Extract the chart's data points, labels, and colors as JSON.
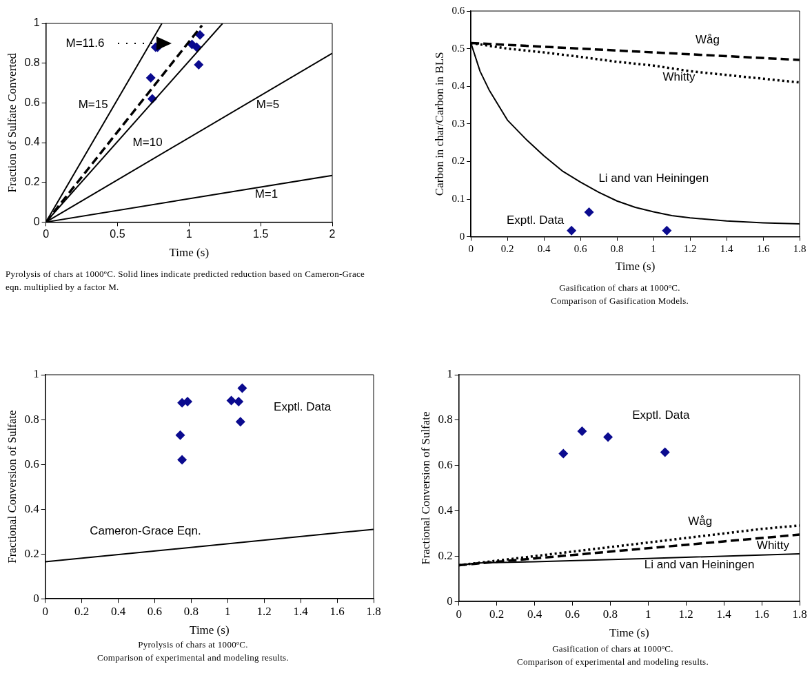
{
  "chart_data": [
    {
      "type": "line",
      "xlabel": "Time (s)",
      "ylabel": "Fraction of Sulfate Converted",
      "xlim": [
        0,
        2
      ],
      "xticks": [
        0,
        0.5,
        1,
        1.5,
        2
      ],
      "ylim": [
        0,
        1
      ],
      "yticks": [
        0,
        0.2,
        0.4,
        0.6,
        0.8,
        1
      ],
      "grid": false,
      "legend": "top left",
      "marker": "none",
      "series": [
        {
          "name": "M=15",
          "type": "line",
          "line_style": "solid",
          "color": "#000000",
          "x": [
            0,
            0.81
          ],
          "values": [
            0,
            1
          ]
        },
        {
          "name": "M=10",
          "type": "line",
          "line_style": "solid",
          "color": "#000000",
          "x": [
            0,
            1.234
          ],
          "values": [
            0,
            1
          ]
        },
        {
          "name": "M=5",
          "type": "line",
          "line_style": "solid",
          "color": "#000000",
          "x": [
            0,
            2
          ],
          "values": [
            0,
            0.85
          ]
        },
        {
          "name": "M=1",
          "type": "line",
          "line_style": "solid",
          "color": "#000000",
          "x": [
            0,
            2
          ],
          "values": [
            0,
            0.235
          ]
        },
        {
          "name": "M=11.6",
          "type": "line",
          "line_style": "dashed",
          "color": "#000000",
          "x": [
            0,
            1.09
          ],
          "values": [
            0,
            0.99
          ]
        },
        {
          "type": "scatter",
          "marker": "diamond",
          "color": "#0b0b8f",
          "x": [
            0.766,
            0.78,
            0.732,
            0.743,
            1.02,
            1.053,
            1.076,
            1.067
          ],
          "values": [
            0.88,
            0.88,
            0.726,
            0.62,
            0.894,
            0.88,
            0.942,
            0.792
          ]
        }
      ],
      "annotations": [
        "Pyrolysis of chars at 1000ºC. Solid lines indicate predicted reduction based on Cameron-Grace eqn. multiplied by a factor M."
      ]
    },
    {
      "type": "line",
      "xlabel": "Time (s)",
      "ylabel": "Carbon in char/Carbon in BLS",
      "xlim": [
        0,
        1.8
      ],
      "xticks": [
        0,
        0.2,
        0.4,
        0.6,
        0.8,
        1,
        1.2,
        1.4,
        1.6,
        1.8
      ],
      "ylim": [
        0,
        0.6
      ],
      "yticks": [
        0,
        0.1,
        0.2,
        0.3,
        0.4,
        0.5,
        0.6
      ],
      "grid": false,
      "marker": "none",
      "series": [
        {
          "name": "Wåg",
          "type": "line",
          "line_style": "dashed",
          "color": "#000000",
          "x": [
            0,
            0.6,
            1,
            1.4,
            1.8
          ],
          "values": [
            0.515,
            0.5,
            0.49,
            0.48,
            0.47
          ]
        },
        {
          "name": "Whitty",
          "type": "line",
          "line_style": "dotted",
          "color": "#000000",
          "x": [
            0,
            0.2,
            0.4,
            0.6,
            0.8,
            1,
            1.2,
            1.4,
            1.6,
            1.8
          ],
          "values": [
            0.515,
            0.5,
            0.49,
            0.478,
            0.465,
            0.455,
            0.44,
            0.43,
            0.42,
            0.41
          ]
        },
        {
          "name": "Li and van Heiningen",
          "type": "line",
          "line_style": "solid",
          "color": "#000000",
          "x": [
            0,
            0.05,
            0.1,
            0.2,
            0.3,
            0.4,
            0.5,
            0.6,
            0.7,
            0.8,
            0.9,
            1,
            1.1,
            1.2,
            1.4,
            1.6,
            1.8
          ],
          "values": [
            0.515,
            0.44,
            0.39,
            0.31,
            0.26,
            0.215,
            0.175,
            0.145,
            0.118,
            0.095,
            0.078,
            0.066,
            0.056,
            0.05,
            0.042,
            0.037,
            0.034
          ]
        },
        {
          "name": "Exptl. Data",
          "type": "scatter",
          "marker": "diamond",
          "color": "#0b0b8f",
          "x": [
            0.551,
            0.647,
            1.073
          ],
          "values": [
            0.016,
            0.065,
            0.016
          ]
        }
      ],
      "annotations": [
        "Gasification of chars at 1000ºC.",
        "Comparison of Gasification Models."
      ]
    },
    {
      "type": "line",
      "xlabel": "Time (s)",
      "ylabel": "Fractional Conversion of Sulfate",
      "xlim": [
        0,
        1.8
      ],
      "xticks": [
        0,
        0.2,
        0.4,
        0.6,
        0.8,
        1,
        1.2,
        1.4,
        1.6,
        1.8
      ],
      "ylim": [
        0,
        1
      ],
      "yticks": [
        0,
        0.2,
        0.4,
        0.6,
        0.8,
        1
      ],
      "grid": false,
      "marker": "none",
      "series": [
        {
          "name": "Cameron-Grace Eqn.",
          "type": "line",
          "line_style": "solid",
          "color": "#000000",
          "x": [
            0,
            1.8
          ],
          "values": [
            0.165,
            0.31
          ]
        },
        {
          "name": "Exptl. Data",
          "type": "scatter",
          "marker": "diamond",
          "color": "#0b0b8f",
          "x": [
            0.75,
            0.78,
            0.74,
            0.75,
            1.02,
            1.06,
            1.08,
            1.07
          ],
          "values": [
            0.875,
            0.88,
            0.73,
            0.62,
            0.885,
            0.88,
            0.94,
            0.79
          ]
        }
      ],
      "annotations": [
        "Pyrolysis of chars at 1000ºC.",
        "Comparison of experimental and modeling results."
      ]
    },
    {
      "type": "line",
      "xlabel": "Time (s)",
      "ylabel": "Fractional Conversion of Sulfate",
      "xlim": [
        0,
        1.8
      ],
      "xticks": [
        0,
        0.2,
        0.4,
        0.6,
        0.8,
        1,
        1.2,
        1.4,
        1.6,
        1.8
      ],
      "ylim": [
        0,
        1
      ],
      "yticks": [
        0,
        0.2,
        0.4,
        0.6,
        0.8,
        1
      ],
      "grid": false,
      "marker": "none",
      "series": [
        {
          "name": "Wåg",
          "type": "line",
          "line_style": "dotted",
          "color": "#000000",
          "x": [
            0,
            0.2,
            0.4,
            0.6,
            0.8,
            1,
            1.2,
            1.4,
            1.6,
            1.8
          ],
          "values": [
            0.16,
            0.18,
            0.2,
            0.22,
            0.24,
            0.26,
            0.28,
            0.3,
            0.32,
            0.335
          ]
        },
        {
          "name": "Whitty",
          "type": "line",
          "line_style": "dashed",
          "color": "#000000",
          "x": [
            0,
            0.2,
            0.4,
            0.6,
            0.8,
            1,
            1.2,
            1.4,
            1.6,
            1.8
          ],
          "values": [
            0.16,
            0.175,
            0.19,
            0.205,
            0.22,
            0.235,
            0.25,
            0.265,
            0.28,
            0.295
          ]
        },
        {
          "name": "Li and van Heiningen",
          "type": "line",
          "line_style": "solid",
          "color": "#000000",
          "x": [
            0,
            0.1,
            0.4,
            1,
            1.8
          ],
          "values": [
            0.16,
            0.17,
            0.175,
            0.19,
            0.21
          ]
        },
        {
          "name": "Exptl. Data",
          "type": "scatter",
          "marker": "diamond",
          "color": "#0b0b8f",
          "x": [
            0.552,
            0.651,
            0.788,
            1.089
          ],
          "values": [
            0.652,
            0.751,
            0.725,
            0.658
          ]
        }
      ],
      "annotations": [
        "Gasification of chars at 1000ºC.",
        "Comparison of experimental and modeling results."
      ]
    }
  ]
}
